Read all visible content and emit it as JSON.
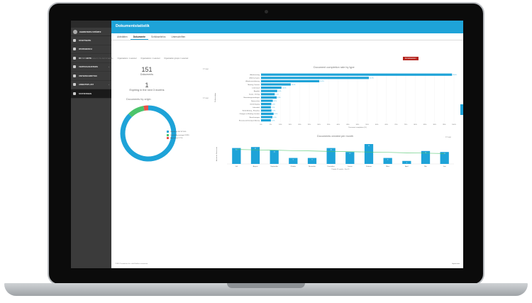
{
  "app": {
    "page_title": "Dokumentstatistik"
  },
  "sidebar": {
    "user": "CHRISTOPH STÖRTZ",
    "items": [
      {
        "label": "STARTSEITE",
        "icon": "home-icon",
        "chevron": ""
      },
      {
        "label": "WORKBENCH",
        "icon": "workbench-icon",
        "chevron": ""
      },
      {
        "label": "DOKUMENTE",
        "icon": "documents-icon",
        "chevron": "›"
      },
      {
        "label": "VERTRAGSUNTERS",
        "icon": "contract-icon",
        "chevron": "›"
      },
      {
        "label": "UNTERSCHRIFTEN",
        "icon": "signature-icon",
        "chevron": ""
      },
      {
        "label": "ARBEITSPLATZ",
        "icon": "desk-icon",
        "chevron": "›"
      },
      {
        "label": "STATISTIKEN",
        "icon": "stats-icon",
        "chevron": "",
        "active": true
      }
    ]
  },
  "tabs": [
    "Aktivitäten",
    "Dokumente",
    "Schlüsselinfos",
    "Unterschriften"
  ],
  "filters": {
    "label": "FILTER",
    "items": [
      "Created in the last 12 months",
      "Organisations: 1 selected",
      "Organisations: 1 selected",
      "Organisation groups: 1 selected"
    ],
    "reset": "Zurücksetzen"
  },
  "updated_ago": "9 h ago",
  "kpi": {
    "total": "151",
    "total_label": "Dokuments",
    "expiring": "1",
    "expiring_label": "Expiring in the next 3 months"
  },
  "colors": {
    "accent": "#1ea3d8",
    "green": "#4cc46b",
    "red": "#e8524a",
    "reset": "#b5241d"
  },
  "chart_data": [
    {
      "type": "pie",
      "title": "Documents by origin",
      "labels": [
        "Uploaded by TSDN",
        "Created by manager",
        "Agreement"
      ],
      "values": [
        87.5,
        9.8,
        2.7
      ],
      "legend": [
        "Upload via SIV 87.50%",
        "Created by manager 9.83%",
        "Agreement 2.71%"
      ],
      "colors": [
        "#1ea3d8",
        "#4cc46b",
        "#e8524a"
      ]
    },
    {
      "type": "bar",
      "orientation": "horizontal",
      "title": "Document completion rate by type",
      "ylabel": "Dokumenttyp",
      "xlabel": "Document completion (%)",
      "xlim": [
        0,
        100
      ],
      "xticks": [
        "0%",
        "5%",
        "10%",
        "15%",
        "20%",
        "25%",
        "30%",
        "35%",
        "40%",
        "45%",
        "50%",
        "55%",
        "60%",
        "65%",
        "70%",
        "75%",
        "80%",
        "85%",
        "90%",
        "95%",
        "100%"
      ],
      "categories": [
        "Arbeitsvertrag",
        "Arbeitszeugnis",
        "Arbeitsvereinbarung",
        "Meeting Contract",
        "Lebenslauf",
        "Angebot",
        "Sozial - Vertrag",
        "Bewerbungsunterlagen",
        "Datenschutz",
        "Genehmigung",
        "Lohnzettel",
        "Weiterbildung - Erlaubnis",
        "Changes to Working Location",
        "Berechnungen",
        "Einsatzzustimmungserklärung"
      ],
      "values": [
        99.0,
        55.9,
        30.2,
        15.4,
        10.6,
        8.4,
        7.1,
        8.1,
        6.1,
        5.3,
        5.1,
        5.4,
        6.5,
        5.9,
        5.1
      ],
      "data_labels": [
        "99.0%",
        "55.9%",
        "30.2%",
        "15.4%",
        "10.6%",
        "8.4%",
        "7.1%",
        "8.1%",
        "6.1%",
        "5.3%",
        "5.1%",
        "5.4%",
        "6.5%",
        "5.9%",
        "5.1%"
      ]
    },
    {
      "type": "bar",
      "title": "Documents created per month",
      "ylabel": "Anzahl der Dokumente",
      "xlabel": "Periode 12 months - Dec-19",
      "categories": [
        "Juli",
        "August",
        "September",
        "Oktober",
        "November",
        "Dezember",
        "Januar",
        "Februar",
        "März",
        "April",
        "Mai",
        "Juni"
      ],
      "values": [
        16,
        17,
        14,
        6,
        6,
        16,
        12,
        20,
        6,
        3,
        13,
        12
      ],
      "trend": [
        14.5,
        14.2,
        13.8,
        13.4,
        13.0,
        12.6,
        12.3,
        12.0,
        11.6,
        11.2,
        10.8,
        10.5
      ],
      "ylim": [
        0,
        20
      ]
    }
  ],
  "footer": {
    "left": "©2020 Trustinfinno Inc. with Brother consortium",
    "right": "Impressum"
  }
}
